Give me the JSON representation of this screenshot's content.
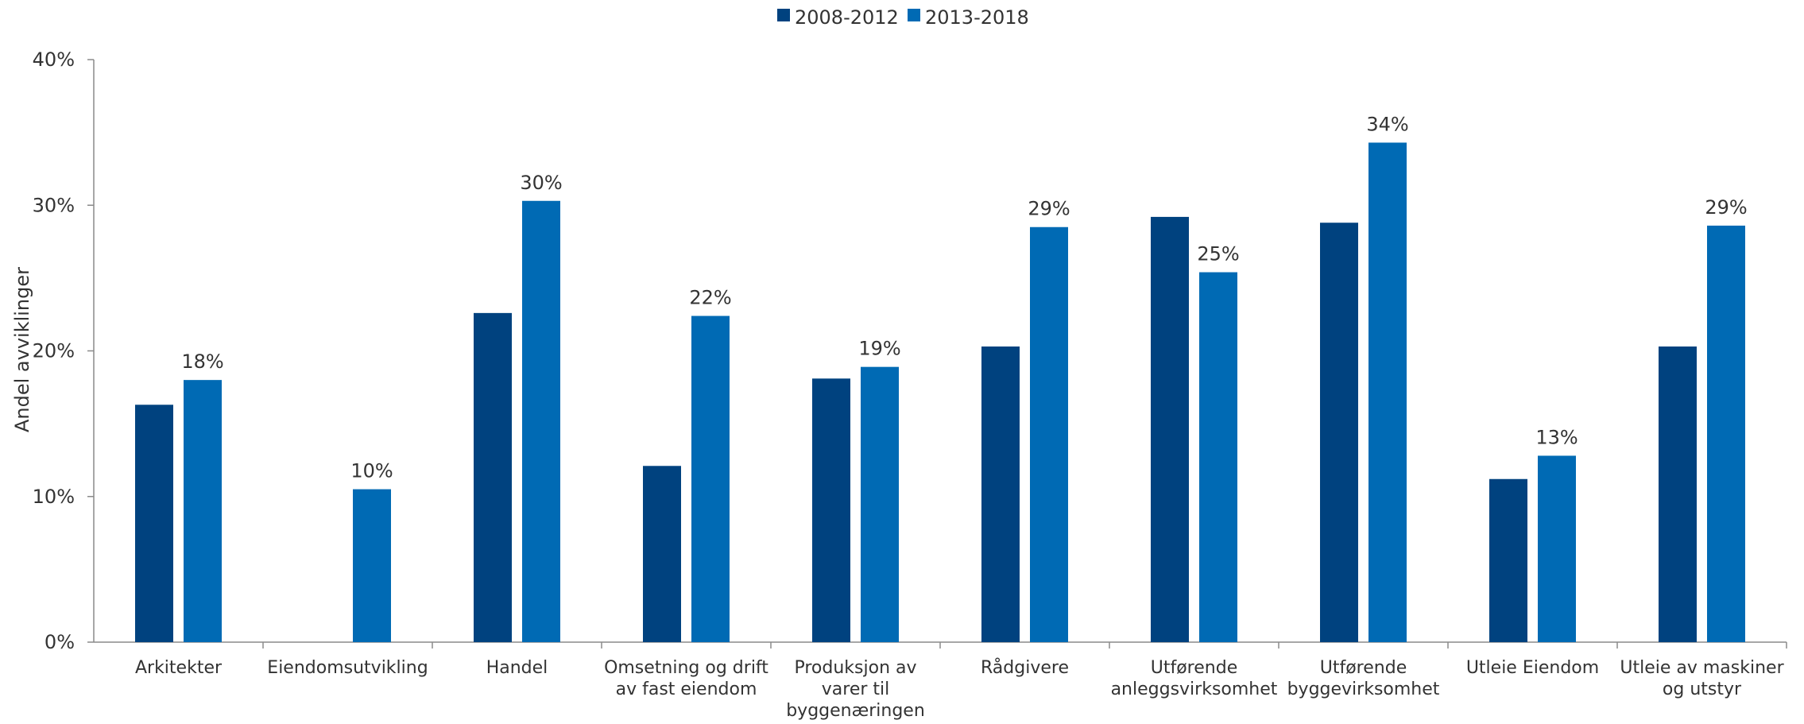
{
  "chart_data": {
    "type": "bar",
    "categories": [
      [
        "Arkitekter"
      ],
      [
        "Eiendomsutvikling"
      ],
      [
        "Handel"
      ],
      [
        "Omsetning og drift",
        "av fast eiendom"
      ],
      [
        "Produksjon av",
        "varer til",
        "byggenæringen"
      ],
      [
        "Rådgivere"
      ],
      [
        "Utførende",
        "anleggsvirksomhet"
      ],
      [
        "Utførende",
        "byggevirksomhet"
      ],
      [
        "Utleie Eiendom"
      ],
      [
        "Utleie av maskiner",
        "og utstyr"
      ]
    ],
    "series": [
      {
        "name": "2008-2012",
        "color": "#00427f",
        "values": [
          16.3,
          null,
          22.6,
          12.1,
          18.1,
          20.3,
          29.2,
          28.8,
          11.2,
          20.3
        ],
        "labels": [
          "",
          "",
          "",
          "",
          "",
          "",
          "",
          "",
          "",
          ""
        ]
      },
      {
        "name": "2013-2018",
        "color": "#006ab4",
        "values": [
          18.0,
          10.5,
          30.3,
          22.4,
          18.9,
          28.5,
          25.4,
          34.3,
          12.8,
          28.6
        ],
        "labels": [
          "18%",
          "10%",
          "30%",
          "22%",
          "19%",
          "29%",
          "25%",
          "34%",
          "13%",
          "29%"
        ]
      }
    ],
    "ylabel": "Andel avviklinger",
    "ylim": [
      0,
      40
    ],
    "yticks": [
      {
        "value": 0,
        "label": "0%"
      },
      {
        "value": 10,
        "label": "10%"
      },
      {
        "value": 20,
        "label": "20%"
      },
      {
        "value": 30,
        "label": "30%"
      },
      {
        "value": 40,
        "label": "40%"
      }
    ],
    "legend_position": "top-center",
    "grid": false
  }
}
